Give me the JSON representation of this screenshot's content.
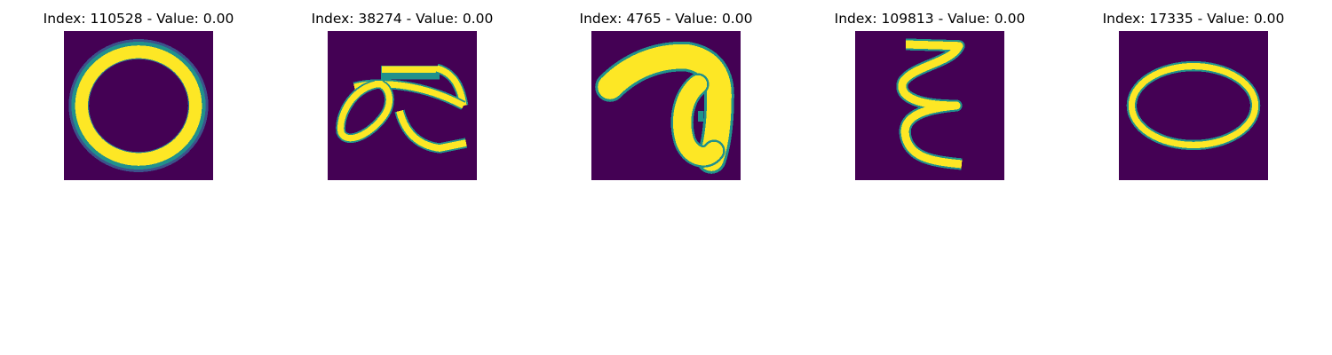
{
  "figure": {
    "colors": {
      "background": "#440154",
      "foreground": "#fde725",
      "mid": "#21918c",
      "edge": "#3b528b"
    },
    "panels": [
      {
        "title": "Index: 110528 - Value: 0.00",
        "glyph": "ring-zero"
      },
      {
        "title": "Index: 38274 - Value: 0.00",
        "glyph": "ligature-ae"
      },
      {
        "title": "Index: 4765 - Value: 0.00",
        "glyph": "hook-seven"
      },
      {
        "title": "Index: 109813 - Value: 0.00",
        "glyph": "vertical-epsilon"
      },
      {
        "title": "Index: 17335 - Value: 0.00",
        "glyph": "flat-oval"
      }
    ]
  }
}
